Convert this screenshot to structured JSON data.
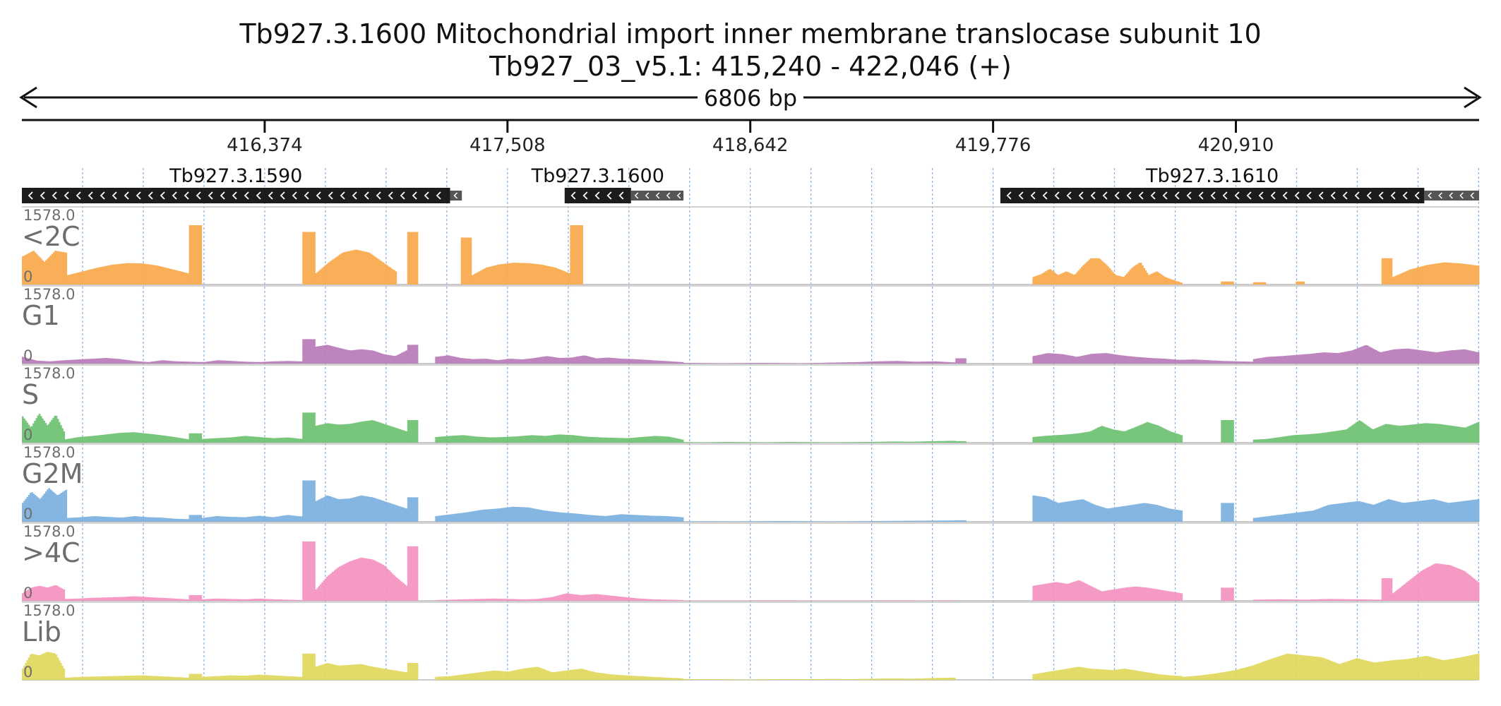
{
  "title": "Tb927.3.1600  Mitochondrial import inner membrane translocase subunit 10",
  "subtitle": "Tb927_03_v5.1: 415,240 - 422,046 (+)",
  "chart_data": {
    "type": "area",
    "region": {
      "chrom": "Tb927_03_v5.1",
      "start": 415240,
      "end": 422046,
      "strand": "+",
      "length_label": "6806 bp"
    },
    "xlim": [
      415240,
      422046
    ],
    "ticks": [
      {
        "pos": 416374,
        "label": "416,374"
      },
      {
        "pos": 417508,
        "label": "417,508"
      },
      {
        "pos": 418642,
        "label": "418,642"
      },
      {
        "pos": 419776,
        "label": "419,776"
      },
      {
        "pos": 420910,
        "label": "420,910"
      }
    ],
    "grid": true,
    "genes": [
      {
        "name": "Tb927.3.1590",
        "start": 415240,
        "end": 417240,
        "utr_start": 417240,
        "utr_end": 417295,
        "strand": "-"
      },
      {
        "name": "Tb927.3.1600",
        "start": 417775,
        "end": 418085,
        "utr_start": 418085,
        "utr_end": 418330,
        "strand": "-"
      },
      {
        "name": "Tb927.3.1610",
        "start": 419810,
        "end": 421790,
        "utr_start": 421790,
        "utr_end": 422046,
        "strand": "-"
      }
    ],
    "ylim": [
      0,
      1578.0
    ],
    "ymax_label": "1578.0",
    "ymin_label": "0",
    "tracks": [
      {
        "name": "<2C",
        "color": "#f7a84a",
        "segments": [
          [
            415240,
            415450,
            [
              750,
              900,
              600,
              900,
              850
            ]
          ],
          [
            415450,
            416020,
            [
              250,
              350,
              450,
              530,
              570,
              560,
              500,
              400,
              300
            ]
          ],
          [
            416020,
            416080,
            [
              1578
            ]
          ],
          [
            416550,
            416610,
            [
              1400
            ]
          ],
          [
            416610,
            416990,
            [
              300,
              600,
              850,
              930,
              850,
              600,
              350
            ]
          ],
          [
            417040,
            417090,
            [
              1400
            ]
          ],
          [
            417290,
            417340,
            [
              1250
            ]
          ],
          [
            417340,
            417800,
            [
              250,
              450,
              540,
              580,
              570,
              530,
              450,
              300
            ]
          ],
          [
            417800,
            417860,
            [
              1578
            ]
          ],
          [
            419960,
            420660,
            [
              200,
              280,
              420,
              250,
              350,
              250,
              500,
              700,
              700,
              500,
              250,
              200,
              450,
              600,
              250,
              350,
              200,
              120,
              50
            ]
          ],
          [
            420840,
            420900,
            [
              80
            ]
          ],
          [
            420990,
            421050,
            [
              60
            ]
          ],
          [
            421190,
            421230,
            [
              80
            ]
          ],
          [
            421590,
            421640,
            [
              700
            ]
          ],
          [
            421640,
            422046,
            [
              200,
              400,
              520,
              590,
              560,
              500
            ]
          ]
        ]
      },
      {
        "name": "G1",
        "color": "#b87ab9",
        "segments": [
          [
            415240,
            416550,
            [
              180,
              80,
              60,
              90,
              110,
              130,
              150,
              120,
              70,
              40,
              90,
              60,
              50,
              40,
              90,
              70,
              50,
              40,
              60,
              70,
              60
            ]
          ],
          [
            416550,
            416610,
            [
              650
            ]
          ],
          [
            416610,
            417040,
            [
              450,
              500,
              420,
              350,
              380,
              350,
              250,
              200,
              350
            ]
          ],
          [
            417040,
            417090,
            [
              500
            ]
          ],
          [
            417170,
            418330,
            [
              180,
              220,
              150,
              120,
              130,
              90,
              130,
              110,
              150,
              200,
              150,
              160,
              220,
              140,
              160,
              130,
              120,
              100,
              80,
              60,
              40
            ]
          ],
          [
            418330,
            419600,
            [
              20,
              15,
              10,
              15,
              20,
              15,
              10,
              20,
              30,
              40,
              60,
              70,
              50,
              60,
              30
            ]
          ],
          [
            419600,
            419650,
            [
              140
            ]
          ],
          [
            419960,
            420990,
            [
              200,
              280,
              250,
              180,
              260,
              280,
              220,
              180,
              150,
              130,
              100,
              110,
              90,
              70,
              60,
              50
            ]
          ],
          [
            420990,
            422046,
            [
              120,
              180,
              200,
              230,
              260,
              300,
              280,
              350,
              500,
              300,
              380,
              400,
              350,
              300,
              350,
              380,
              300
            ]
          ]
        ]
      },
      {
        "name": "S",
        "color": "#6cc170",
        "segments": [
          [
            415240,
            415440,
            [
              700,
              400,
              780,
              450,
              750,
              300
            ]
          ],
          [
            415440,
            416020,
            [
              90,
              150,
              180,
              220,
              260,
              280,
              240,
              200,
              150,
              90
            ]
          ],
          [
            416020,
            416080,
            [
              250
            ]
          ],
          [
            416080,
            416550,
            [
              100,
              120,
              140,
              180,
              150,
              120,
              140,
              100
            ]
          ],
          [
            416550,
            416610,
            [
              800
            ]
          ],
          [
            416610,
            417040,
            [
              450,
              520,
              480,
              500,
              560,
              600,
              500,
              400,
              300
            ]
          ],
          [
            417040,
            417090,
            [
              600
            ]
          ],
          [
            417170,
            418330,
            [
              150,
              180,
              200,
              160,
              140,
              150,
              170,
              200,
              180,
              220,
              200,
              160,
              140,
              130,
              120,
              150,
              180,
              160,
              80
            ]
          ],
          [
            418330,
            419600,
            [
              15,
              10,
              20,
              15,
              10,
              20,
              15,
              10,
              15,
              20,
              30,
              25,
              40,
              50
            ]
          ],
          [
            419600,
            419650,
            [
              40
            ]
          ],
          [
            419960,
            420660,
            [
              150,
              180,
              200,
              220,
              250,
              300,
              450,
              350,
              300,
              420,
              550,
              450,
              300,
              200
            ]
          ],
          [
            420840,
            420900,
            [
              600
            ]
          ],
          [
            420990,
            422046,
            [
              80,
              100,
              150,
              200,
              220,
              250,
              300,
              350,
              600,
              350,
              500,
              450,
              480,
              520,
              500,
              450,
              400,
              550
            ]
          ]
        ]
      },
      {
        "name": "G2M",
        "color": "#7ab0de",
        "segments": [
          [
            415240,
            415450,
            [
              500,
              800,
              600,
              900,
              700,
              850
            ]
          ],
          [
            415450,
            416020,
            [
              100,
              120,
              150,
              130,
              110,
              150,
              120,
              110,
              80,
              70
            ]
          ],
          [
            416020,
            416080,
            [
              180
            ]
          ],
          [
            416080,
            416550,
            [
              100,
              150,
              130,
              120,
              160,
              120,
              180,
              140
            ]
          ],
          [
            416550,
            416610,
            [
              1100
            ]
          ],
          [
            416610,
            417040,
            [
              550,
              700,
              600,
              620,
              700,
              650,
              550,
              450,
              350
            ]
          ],
          [
            417040,
            417090,
            [
              650
            ]
          ],
          [
            417170,
            418330,
            [
              150,
              200,
              250,
              320,
              350,
              400,
              380,
              300,
              250,
              220,
              180,
              150,
              200,
              180,
              160,
              150,
              120
            ]
          ],
          [
            418330,
            419600,
            [
              10,
              15,
              10,
              15,
              20,
              15,
              10,
              15,
              20,
              25,
              30,
              35
            ]
          ],
          [
            419600,
            419650,
            [
              40
            ]
          ],
          [
            419960,
            420660,
            [
              700,
              650,
              500,
              550,
              600,
              450,
              350,
              400,
              450,
              500,
              450,
              350,
              300
            ]
          ],
          [
            420840,
            420900,
            [
              500
            ]
          ],
          [
            420990,
            422046,
            [
              100,
              150,
              200,
              250,
              300,
              450,
              500,
              550,
              450,
              600,
              500,
              550,
              600,
              500,
              550,
              600
            ]
          ]
        ]
      },
      {
        "name": ">4C",
        "color": "#f490c0",
        "segments": [
          [
            415240,
            415440,
            [
              200,
              350,
              400,
              350,
              420,
              300
            ]
          ],
          [
            415440,
            416020,
            [
              50,
              60,
              80,
              90,
              100,
              120,
              100,
              80,
              60,
              40
            ]
          ],
          [
            416020,
            416080,
            [
              150
            ]
          ],
          [
            416080,
            416550,
            [
              40,
              60,
              50,
              40,
              60,
              40,
              30,
              20
            ]
          ],
          [
            416550,
            416610,
            [
              1578
            ]
          ],
          [
            416610,
            417040,
            [
              300,
              650,
              900,
              1050,
              1150,
              1100,
              950,
              650,
              400
            ]
          ],
          [
            417040,
            417090,
            [
              1450
            ]
          ],
          [
            417170,
            418330,
            [
              20,
              30,
              40,
              50,
              60,
              50,
              40,
              50,
              100,
              200,
              150,
              180,
              140,
              100,
              60,
              40,
              30,
              20
            ]
          ],
          [
            418330,
            419600,
            [
              10,
              8,
              10,
              12,
              10,
              8,
              10,
              12,
              10,
              15
            ]
          ],
          [
            419960,
            420660,
            [
              400,
              450,
              500,
              450,
              550,
              400,
              250,
              300,
              350,
              380,
              350,
              300,
              250,
              200
            ]
          ],
          [
            420840,
            420900,
            [
              350
            ]
          ],
          [
            420990,
            421590,
            [
              30,
              40,
              30,
              50,
              40,
              30
            ]
          ],
          [
            421590,
            421640,
            [
              600
            ]
          ],
          [
            421640,
            422046,
            [
              200,
              500,
              800,
              1000,
              950,
              800,
              500
            ]
          ]
        ]
      },
      {
        "name": "Lib",
        "color": "#e0d85a",
        "segments": [
          [
            415240,
            415440,
            [
              300,
              700,
              650,
              750,
              700,
              300
            ]
          ],
          [
            415440,
            416020,
            [
              60,
              80,
              90,
              100,
              110,
              120,
              100,
              80,
              60
            ]
          ],
          [
            416020,
            416080,
            [
              160
            ]
          ],
          [
            416080,
            416550,
            [
              80,
              100,
              120,
              110,
              140,
              120,
              100,
              80
            ]
          ],
          [
            416550,
            416610,
            [
              700
            ]
          ],
          [
            416610,
            417040,
            [
              350,
              450,
              380,
              400,
              420,
              350,
              300,
              250,
              200
            ]
          ],
          [
            417040,
            417090,
            [
              450
            ]
          ],
          [
            417170,
            418330,
            [
              80,
              100,
              150,
              200,
              250,
              220,
              300,
              350,
              200,
              250,
              300,
              200,
              150,
              120,
              100,
              80,
              60,
              40
            ]
          ],
          [
            418330,
            419600,
            [
              15,
              20,
              15,
              10,
              15,
              20,
              15,
              25,
              20,
              30,
              40,
              30,
              50,
              60
            ]
          ],
          [
            419960,
            420660,
            [
              150,
              200,
              250,
              300,
              350,
              300,
              280,
              260,
              300,
              250,
              200,
              150,
              120,
              100
            ]
          ],
          [
            420660,
            422046,
            [
              80,
              120,
              180,
              260,
              380,
              550,
              700,
              650,
              600,
              420,
              580,
              460,
              520,
              560,
              640,
              520,
              600,
              700
            ]
          ]
        ]
      }
    ]
  }
}
